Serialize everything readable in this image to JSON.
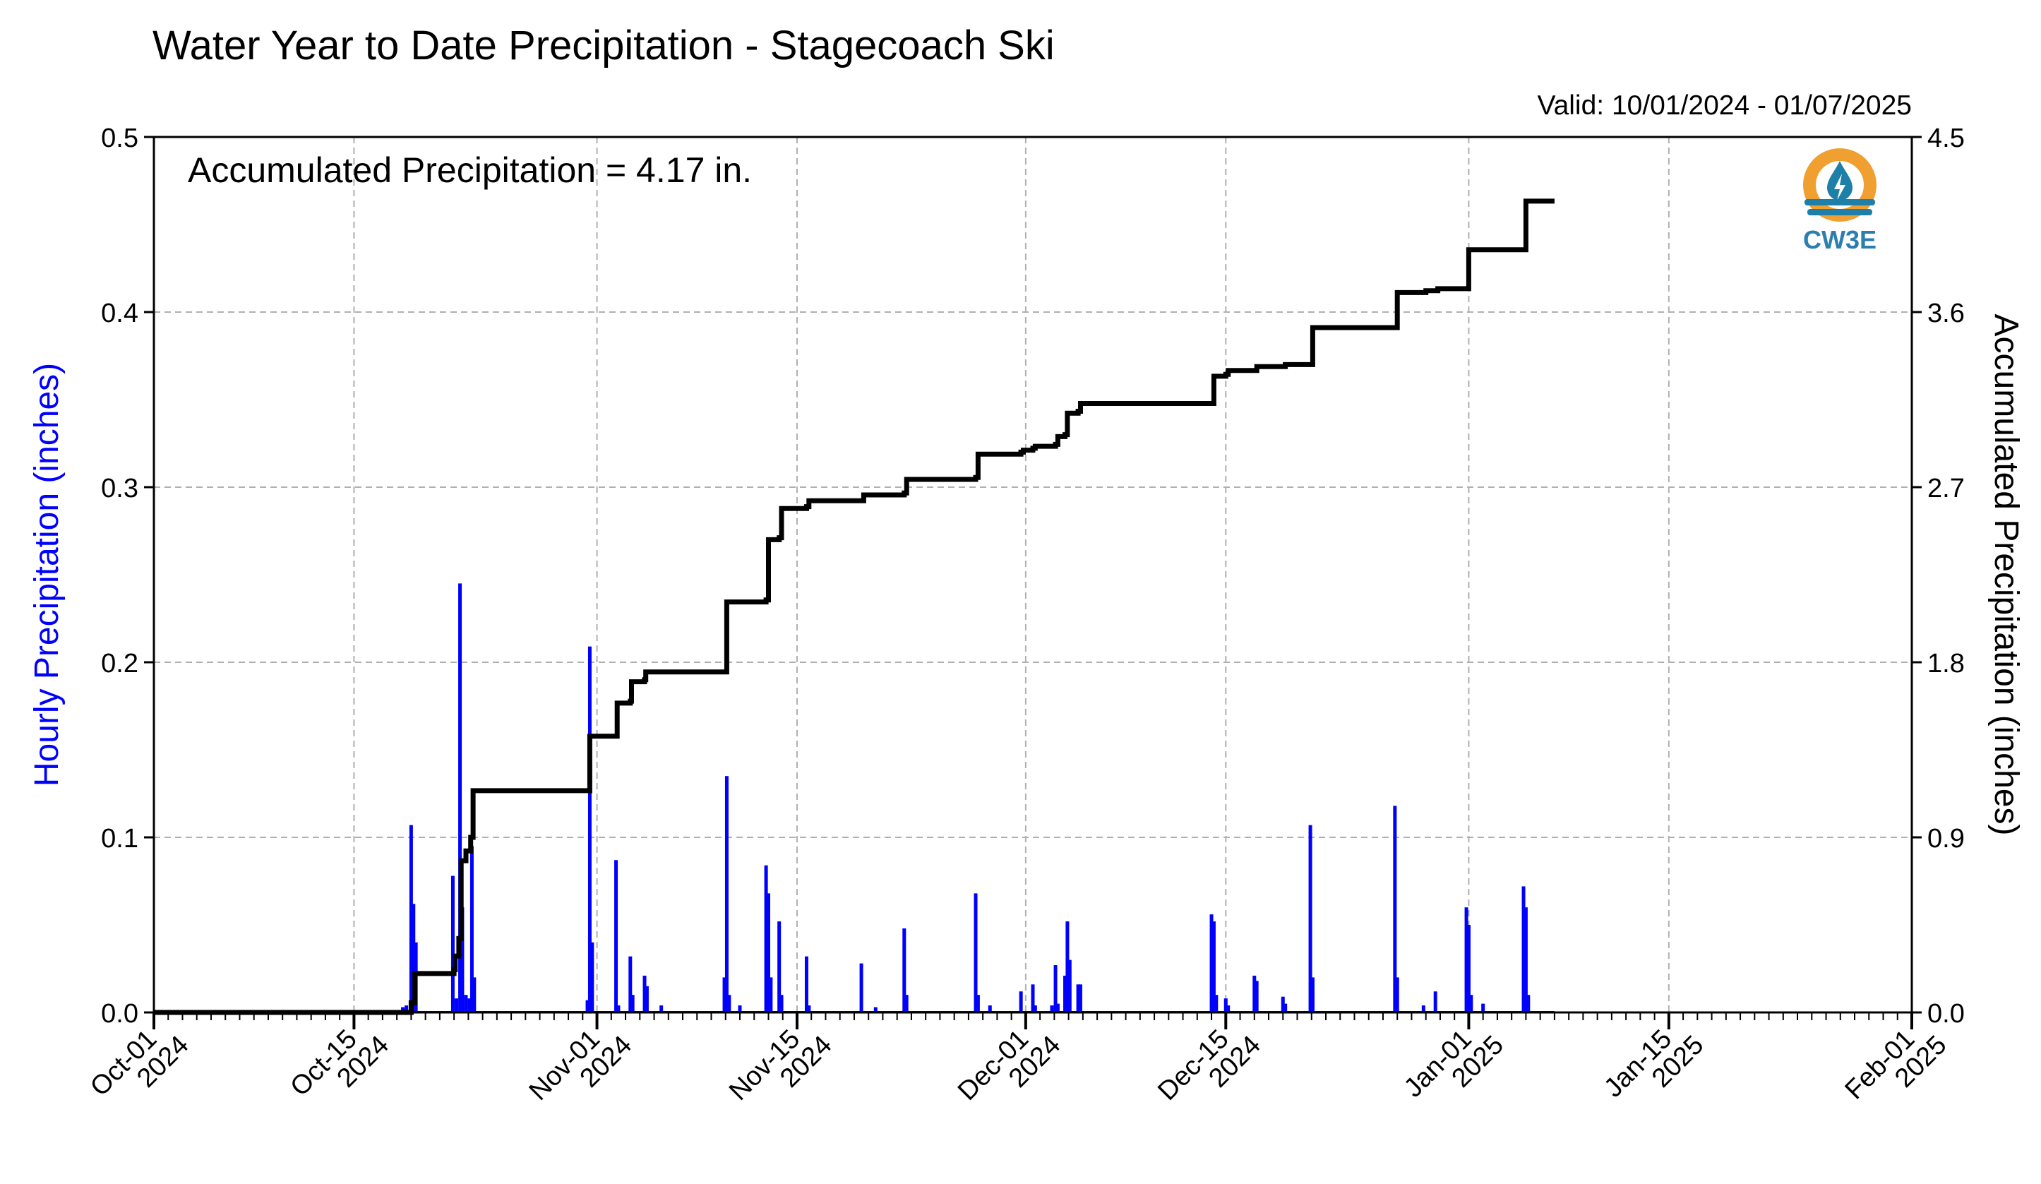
{
  "chart_data": {
    "type": "bar",
    "title": "Water Year to Date Precipitation - Stagecoach Ski",
    "valid_label": "Valid: 10/01/2024 - 01/07/2025",
    "annotation": "Accumulated Precipitation = 4.17 in.",
    "ylabel": "Hourly Precipitation (inches)",
    "y2label": "Accumulated Precipitation (inches)",
    "ylim": [
      0,
      0.5
    ],
    "y2lim": [
      0,
      4.5
    ],
    "xlim": [
      "2024-10-01",
      "2025-02-01"
    ],
    "y_ticks": [
      "0.0",
      "0.1",
      "0.2",
      "0.3",
      "0.4",
      "0.5"
    ],
    "y2_ticks": [
      "0.0",
      "0.9",
      "1.8",
      "2.7",
      "3.6",
      "4.5"
    ],
    "x_ticks": [
      {
        "date": "2024-10-01",
        "line1": "Oct-01",
        "line2": "2024"
      },
      {
        "date": "2024-10-15",
        "line1": "Oct-15",
        "line2": "2024"
      },
      {
        "date": "2024-11-01",
        "line1": "Nov-01",
        "line2": "2024"
      },
      {
        "date": "2024-11-15",
        "line1": "Nov-15",
        "line2": "2024"
      },
      {
        "date": "2024-12-01",
        "line1": "Dec-01",
        "line2": "2024"
      },
      {
        "date": "2024-12-15",
        "line1": "Dec-15",
        "line2": "2024"
      },
      {
        "date": "2025-01-01",
        "line1": "Jan-01",
        "line2": "2025"
      },
      {
        "date": "2025-01-15",
        "line1": "Jan-15",
        "line2": "2025"
      },
      {
        "date": "2025-02-01",
        "line1": "Feb-01",
        "line2": "2025"
      }
    ],
    "grid": true,
    "colors": {
      "hourly": "#0000ff",
      "accumulated": "#000000",
      "grid": "#b0b0b0"
    },
    "series": [
      {
        "name": "Hourly Precipitation (inches)",
        "type": "bar",
        "points": [
          [
            "2024-10-18T10:00",
            0.003
          ],
          [
            "2024-10-18T16:00",
            0.004
          ],
          [
            "2024-10-19T00:00",
            0.107
          ],
          [
            "2024-10-19T04:00",
            0.062
          ],
          [
            "2024-10-19T08:00",
            0.04
          ],
          [
            "2024-10-21T22:00",
            0.078
          ],
          [
            "2024-10-22T04:00",
            0.008
          ],
          [
            "2024-10-22T10:00",
            0.245
          ],
          [
            "2024-10-22T14:00",
            0.06
          ],
          [
            "2024-10-22T20:00",
            0.01
          ],
          [
            "2024-10-23T02:00",
            0.008
          ],
          [
            "2024-10-23T06:00",
            0.095
          ],
          [
            "2024-10-23T10:00",
            0.02
          ],
          [
            "2024-10-31T08:00",
            0.007
          ],
          [
            "2024-10-31T12:00",
            0.209
          ],
          [
            "2024-10-31T16:00",
            0.04
          ],
          [
            "2024-11-02T08:00",
            0.087
          ],
          [
            "2024-11-02T12:00",
            0.004
          ],
          [
            "2024-11-03T08:00",
            0.032
          ],
          [
            "2024-11-03T12:00",
            0.01
          ],
          [
            "2024-11-04T08:00",
            0.021
          ],
          [
            "2024-11-04T12:00",
            0.015
          ],
          [
            "2024-11-05T12:00",
            0.004
          ],
          [
            "2024-11-09T22:00",
            0.02
          ],
          [
            "2024-11-10T02:00",
            0.135
          ],
          [
            "2024-11-10T06:00",
            0.01
          ],
          [
            "2024-11-11T00:00",
            0.004
          ],
          [
            "2024-11-12T20:00",
            0.084
          ],
          [
            "2024-11-13T00:00",
            0.068
          ],
          [
            "2024-11-13T04:00",
            0.02
          ],
          [
            "2024-11-13T18:00",
            0.052
          ],
          [
            "2024-11-13T22:00",
            0.01
          ],
          [
            "2024-11-15T16:00",
            0.032
          ],
          [
            "2024-11-15T20:00",
            0.004
          ],
          [
            "2024-11-19T12:00",
            0.028
          ],
          [
            "2024-11-20T12:00",
            0.003
          ],
          [
            "2024-11-22T12:00",
            0.048
          ],
          [
            "2024-11-22T16:00",
            0.01
          ],
          [
            "2024-11-27T12:00",
            0.068
          ],
          [
            "2024-11-27T16:00",
            0.01
          ],
          [
            "2024-11-28T12:00",
            0.004
          ],
          [
            "2024-11-30T16:00",
            0.012
          ],
          [
            "2024-12-01T12:00",
            0.016
          ],
          [
            "2024-12-01T16:00",
            0.004
          ],
          [
            "2024-12-02T20:00",
            0.004
          ],
          [
            "2024-12-03T02:00",
            0.027
          ],
          [
            "2024-12-03T06:00",
            0.005
          ],
          [
            "2024-12-03T18:00",
            0.021
          ],
          [
            "2024-12-03T22:00",
            0.052
          ],
          [
            "2024-12-04T02:00",
            0.03
          ],
          [
            "2024-12-04T16:00",
            0.016
          ],
          [
            "2024-12-04T20:00",
            0.016
          ],
          [
            "2024-12-14T00:00",
            0.056
          ],
          [
            "2024-12-14T04:00",
            0.052
          ],
          [
            "2024-12-14T08:00",
            0.01
          ],
          [
            "2024-12-15T00:00",
            0.008
          ],
          [
            "2024-12-15T04:00",
            0.004
          ],
          [
            "2024-12-17T00:00",
            0.021
          ],
          [
            "2024-12-17T04:00",
            0.018
          ],
          [
            "2024-12-19T00:00",
            0.009
          ],
          [
            "2024-12-19T04:00",
            0.005
          ],
          [
            "2024-12-20T22:00",
            0.107
          ],
          [
            "2024-12-21T02:00",
            0.02
          ],
          [
            "2024-12-26T20:00",
            0.118
          ],
          [
            "2024-12-27T00:00",
            0.02
          ],
          [
            "2024-12-28T20:00",
            0.004
          ],
          [
            "2024-12-29T16:00",
            0.012
          ],
          [
            "2024-12-31T20:00",
            0.06
          ],
          [
            "2025-01-01T00:00",
            0.05
          ],
          [
            "2025-01-01T04:00",
            0.01
          ],
          [
            "2025-01-02T00:00",
            0.005
          ],
          [
            "2025-01-04T20:00",
            0.072
          ],
          [
            "2025-01-05T00:00",
            0.06
          ],
          [
            "2025-01-05T04:00",
            0.01
          ]
        ]
      },
      {
        "name": "Accumulated Precipitation (inches)",
        "type": "step",
        "points": [
          [
            "2024-10-01",
            0.0
          ],
          [
            "2024-10-18T12:00",
            0.0
          ],
          [
            "2024-10-19T00:00",
            0.05
          ],
          [
            "2024-10-19T06:00",
            0.2
          ],
          [
            "2024-10-21T22:00",
            0.2
          ],
          [
            "2024-10-22T00:00",
            0.22
          ],
          [
            "2024-10-22T02:00",
            0.29
          ],
          [
            "2024-10-22T08:00",
            0.38
          ],
          [
            "2024-10-22T12:00",
            0.78
          ],
          [
            "2024-10-22T20:00",
            0.83
          ],
          [
            "2024-10-23T04:00",
            0.9
          ],
          [
            "2024-10-23T08:00",
            1.14
          ],
          [
            "2024-10-31T10:00",
            1.14
          ],
          [
            "2024-10-31T12:00",
            1.42
          ],
          [
            "2024-11-02T08:00",
            1.42
          ],
          [
            "2024-11-02T10:00",
            1.59
          ],
          [
            "2024-11-03T08:00",
            1.6
          ],
          [
            "2024-11-03T10:00",
            1.7
          ],
          [
            "2024-11-04T08:00",
            1.71
          ],
          [
            "2024-11-04T10:00",
            1.75
          ],
          [
            "2024-11-09T22:00",
            1.75
          ],
          [
            "2024-11-10T02:00",
            2.11
          ],
          [
            "2024-11-12T20:00",
            2.12
          ],
          [
            "2024-11-13T00:00",
            2.43
          ],
          [
            "2024-11-13T18:00",
            2.44
          ],
          [
            "2024-11-13T22:00",
            2.59
          ],
          [
            "2024-11-15T16:00",
            2.6
          ],
          [
            "2024-11-15T20:00",
            2.63
          ],
          [
            "2024-11-19T12:00",
            2.63
          ],
          [
            "2024-11-19T16:00",
            2.66
          ],
          [
            "2024-11-22T12:00",
            2.67
          ],
          [
            "2024-11-22T16:00",
            2.74
          ],
          [
            "2024-11-27T12:00",
            2.75
          ],
          [
            "2024-11-27T16:00",
            2.87
          ],
          [
            "2024-11-30T16:00",
            2.88
          ],
          [
            "2024-11-30T20:00",
            2.89
          ],
          [
            "2024-12-01T12:00",
            2.9
          ],
          [
            "2024-12-01T16:00",
            2.91
          ],
          [
            "2024-12-03T02:00",
            2.92
          ],
          [
            "2024-12-03T06:00",
            2.96
          ],
          [
            "2024-12-03T18:00",
            2.97
          ],
          [
            "2024-12-03T22:00",
            3.08
          ],
          [
            "2024-12-04T16:00",
            3.09
          ],
          [
            "2024-12-04T20:00",
            3.13
          ],
          [
            "2024-12-14T00:00",
            3.13
          ],
          [
            "2024-12-14T04:00",
            3.27
          ],
          [
            "2024-12-15T00:00",
            3.28
          ],
          [
            "2024-12-15T04:00",
            3.3
          ],
          [
            "2024-12-17T00:00",
            3.3
          ],
          [
            "2024-12-17T04:00",
            3.32
          ],
          [
            "2024-12-19T00:00",
            3.32
          ],
          [
            "2024-12-19T04:00",
            3.33
          ],
          [
            "2024-12-20T22:00",
            3.33
          ],
          [
            "2024-12-21T02:00",
            3.52
          ],
          [
            "2024-12-26T20:00",
            3.52
          ],
          [
            "2024-12-27T00:00",
            3.7
          ],
          [
            "2024-12-28T20:00",
            3.7
          ],
          [
            "2024-12-29T00:00",
            3.71
          ],
          [
            "2024-12-29T16:00",
            3.71
          ],
          [
            "2024-12-29T20:00",
            3.72
          ],
          [
            "2024-12-31T20:00",
            3.72
          ],
          [
            "2025-01-01T00:00",
            3.92
          ],
          [
            "2025-01-04T20:00",
            3.92
          ],
          [
            "2025-01-05T00:00",
            4.17
          ],
          [
            "2025-01-07T00:00",
            4.17
          ]
        ]
      }
    ]
  },
  "logo": {
    "text": "CW3E",
    "ring_color": "#f0a030",
    "water_color": "#1e7fa8",
    "text_color": "#2a7fb0"
  }
}
